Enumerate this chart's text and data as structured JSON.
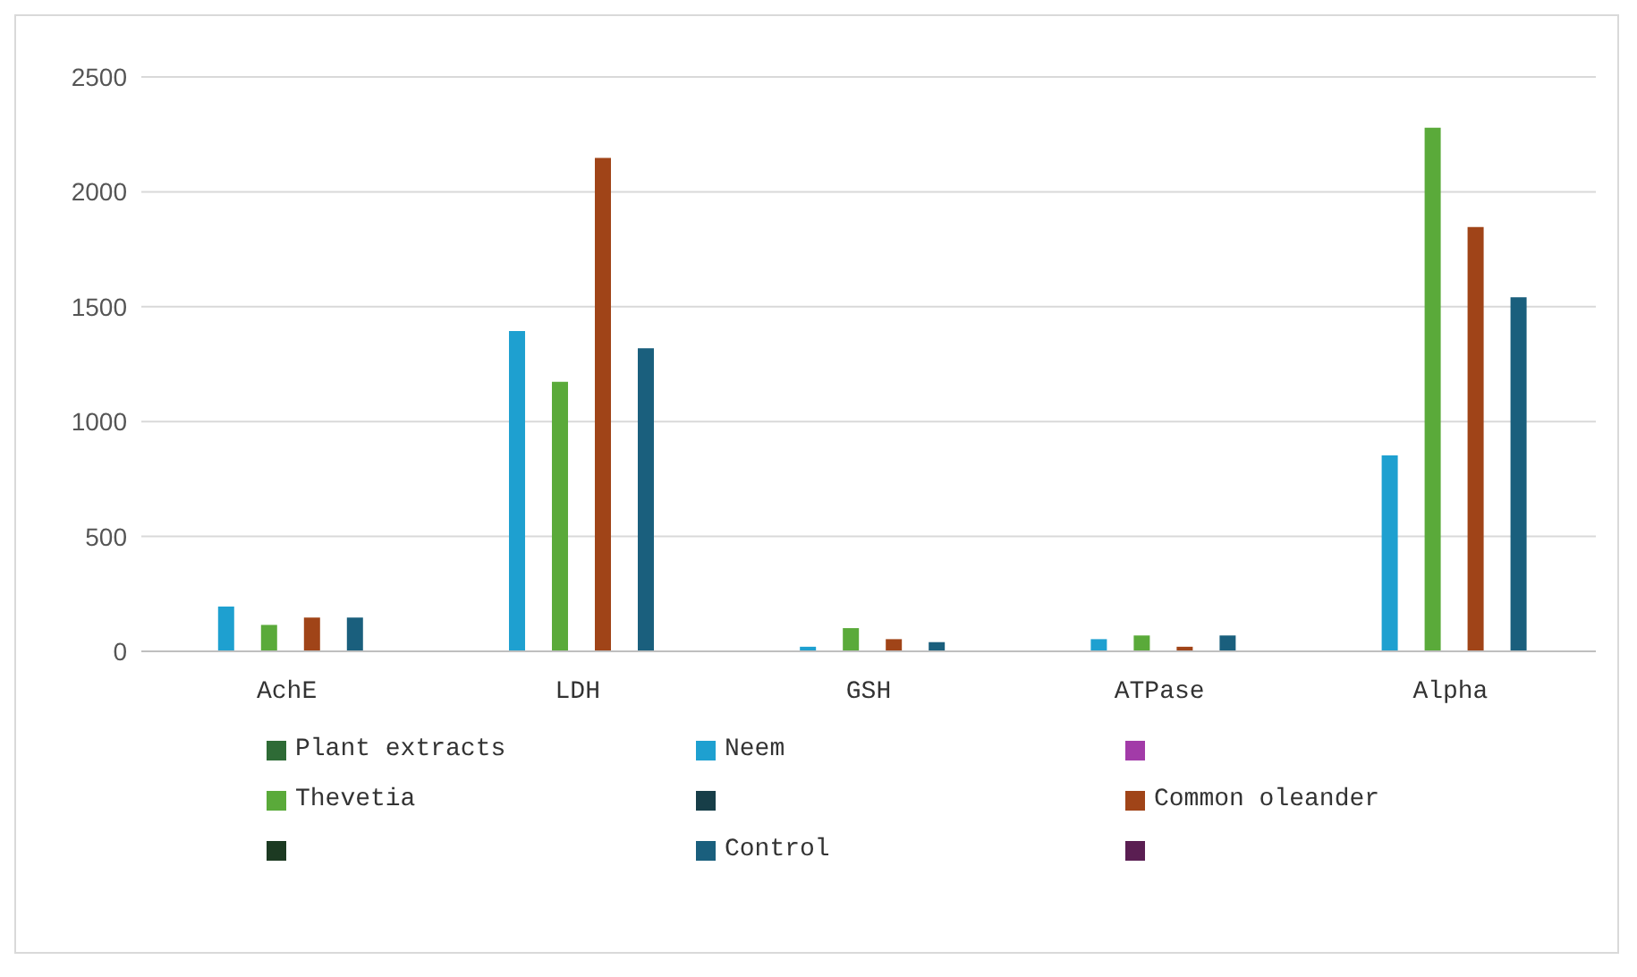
{
  "chart_data": {
    "type": "bar",
    "categories": [
      "AchE",
      "LDH",
      "GSH",
      "ATPase",
      "Alpha"
    ],
    "series": [
      {
        "name": "Plant extracts",
        "color": "#2e6b36",
        "values": [
          null,
          null,
          null,
          null,
          null
        ]
      },
      {
        "name": "Neem",
        "color": "#1ea0d0",
        "values": [
          195,
          1394,
          20,
          53,
          853
        ]
      },
      {
        "color": "#a23ba8",
        "values": [
          null,
          null,
          null,
          null,
          null
        ]
      },
      {
        "name": "Thevetia",
        "color": "#5aaa3a",
        "values": [
          115,
          1173,
          101,
          69,
          2279
        ]
      },
      {
        "color": "#173e48",
        "values": [
          null,
          null,
          null,
          null,
          null
        ]
      },
      {
        "name": "Common oleander",
        "color": "#a04418",
        "values": [
          147,
          2148,
          53,
          20,
          1847
        ]
      },
      {
        "color": "#1c3a22",
        "values": [
          null,
          null,
          null,
          null,
          null
        ]
      },
      {
        "name": "Control",
        "color": "#1a5f7d",
        "values": [
          147,
          1319,
          40,
          69,
          1541
        ]
      },
      {
        "color": "#5a1e52",
        "values": [
          null,
          null,
          null,
          null,
          null
        ]
      }
    ],
    "ylim": [
      0,
      2500
    ],
    "yticks": [
      0,
      500,
      1000,
      1500,
      2000,
      2500
    ],
    "grid": "y",
    "legend": "bottom"
  }
}
